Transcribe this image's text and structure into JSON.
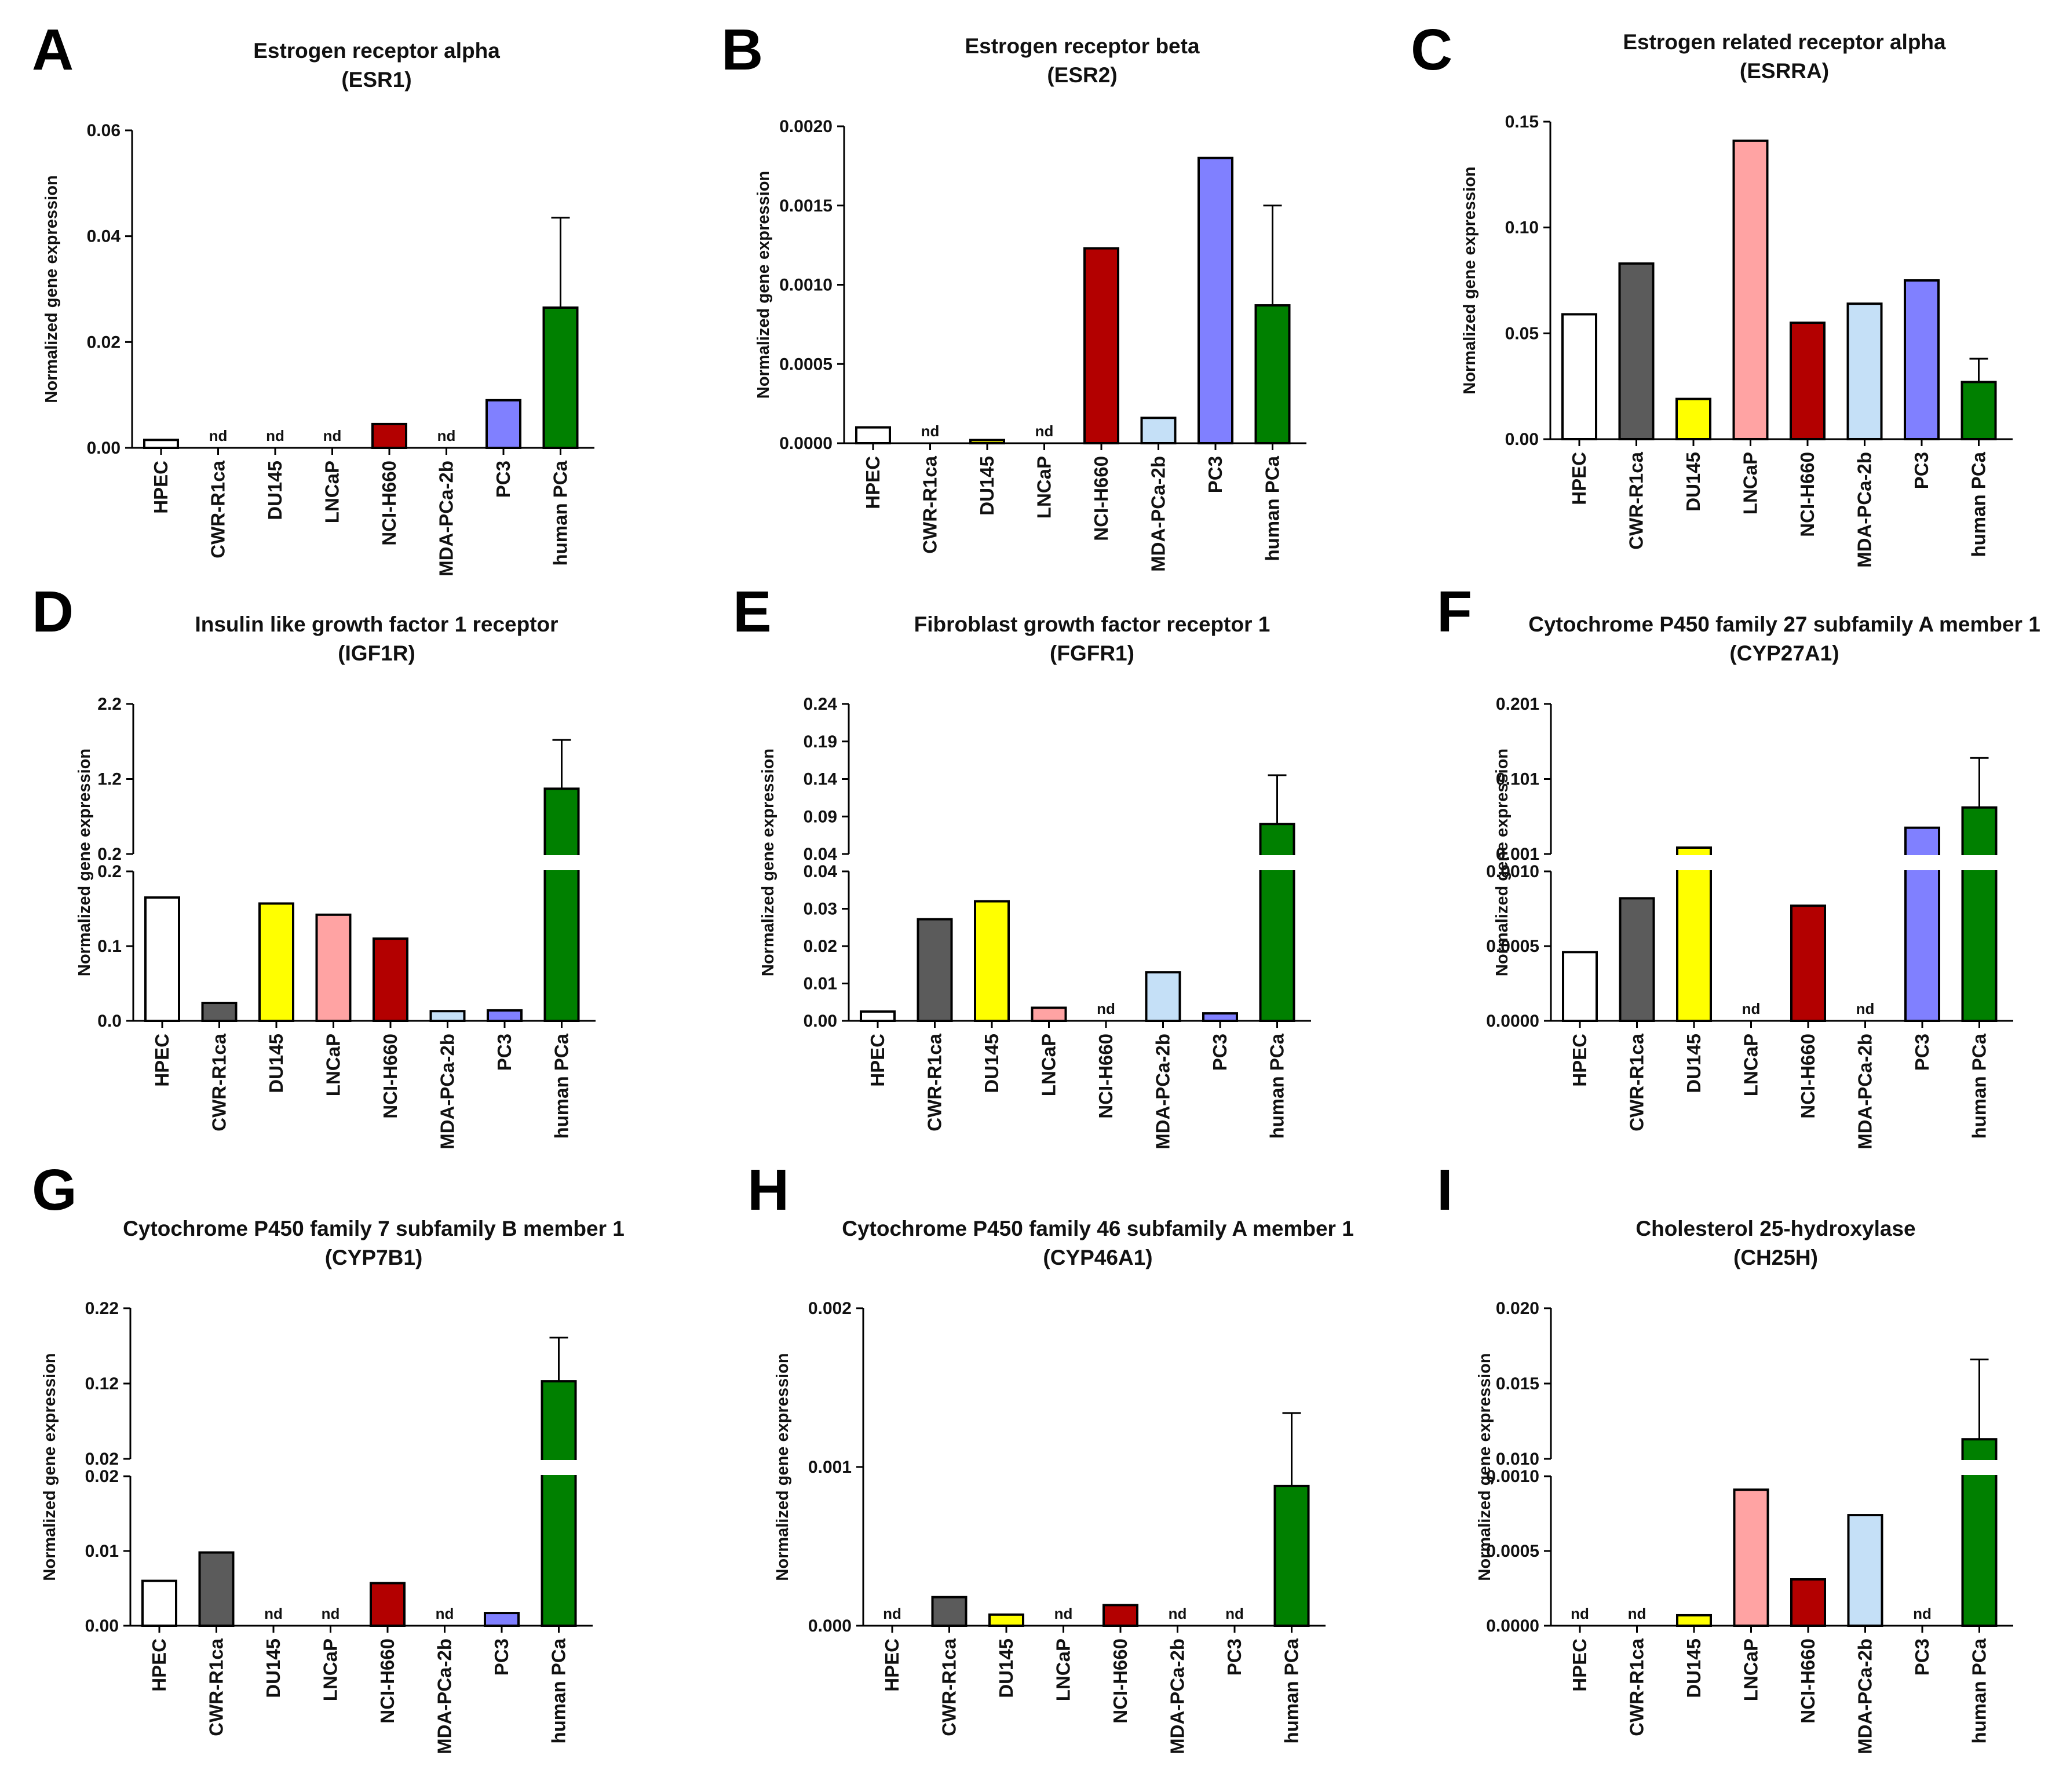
{
  "categories": [
    "HPEC",
    "CWR-R1ca",
    "DU145",
    "LNCaP",
    "NCI-H660",
    "MDA-PCa-2b",
    "PC3",
    "human PCa"
  ],
  "colors": [
    "#ffffff",
    "#5b5b5b",
    "#ffff00",
    "#ffa3a3",
    "#b30000",
    "#c5e0f7",
    "#8080ff",
    "#008000"
  ],
  "nd_label": "nd",
  "chart_data": [
    {
      "type": "bar",
      "panel": "A",
      "title": [
        "Estrogen receptor alpha",
        "(ESR1)"
      ],
      "ylabel": "Normalized gene expression",
      "ylim": [
        0,
        0.06
      ],
      "ticks": [
        "0.00",
        "0.02",
        "0.04",
        "0.06"
      ],
      "values": [
        0.0015,
        null,
        null,
        null,
        0.0045,
        null,
        0.009,
        0.0265
      ],
      "errors": [
        null,
        null,
        null,
        null,
        null,
        null,
        null,
        0.017
      ]
    },
    {
      "type": "bar",
      "panel": "B",
      "title": [
        "Estrogen receptor beta",
        "(ESR2)"
      ],
      "ylabel": "Normalized gene expression",
      "ylim": [
        0,
        0.002
      ],
      "ticks": [
        "0.0000",
        "0.0005",
        "0.0010",
        "0.0015",
        "0.0020"
      ],
      "values": [
        0.0001,
        null,
        2e-05,
        null,
        0.00123,
        0.00016,
        0.0018,
        0.00087
      ],
      "errors": [
        null,
        null,
        null,
        null,
        null,
        null,
        null,
        0.00063
      ]
    },
    {
      "type": "bar",
      "panel": "C",
      "title": [
        "Estrogen related receptor alpha",
        "(ESRRA)"
      ],
      "ylabel": "Normalized gene expression",
      "ylim": [
        0,
        0.15
      ],
      "ticks": [
        "0.00",
        "0.05",
        "0.10",
        "0.15"
      ],
      "values": [
        0.059,
        0.083,
        0.019,
        0.141,
        0.055,
        0.064,
        0.075,
        0.027
      ],
      "errors": [
        null,
        null,
        null,
        null,
        null,
        null,
        null,
        0.011
      ]
    },
    {
      "type": "bar",
      "panel": "D",
      "broken_axis": true,
      "title": [
        "Insulin like growth factor 1 receptor",
        "(IGF1R)"
      ],
      "ylabel": "Normalized gene expression",
      "lower_range": [
        0,
        0.2
      ],
      "upper_range": [
        0.2,
        2.2
      ],
      "lower_ticks": [
        "0.0",
        "0.1",
        "0.2"
      ],
      "upper_ticks": [
        "0.2",
        "1.2",
        "2.2"
      ],
      "values": [
        0.165,
        0.024,
        0.157,
        0.142,
        0.11,
        0.013,
        0.014,
        1.07
      ],
      "errors": [
        null,
        null,
        null,
        null,
        null,
        null,
        null,
        0.65
      ]
    },
    {
      "type": "bar",
      "panel": "E",
      "broken_axis": true,
      "title": [
        "Fibroblast growth factor receptor 1",
        "(FGFR1)"
      ],
      "ylabel": "Normalized gene expression",
      "lower_range": [
        0,
        0.04
      ],
      "upper_range": [
        0.04,
        0.24
      ],
      "lower_ticks": [
        "0.00",
        "0.01",
        "0.02",
        "0.03",
        "0.04"
      ],
      "upper_ticks": [
        "0.04",
        "0.09",
        "0.14",
        "0.19",
        "0.24"
      ],
      "values": [
        0.0025,
        0.0272,
        0.032,
        0.0035,
        null,
        0.013,
        0.002,
        0.08
      ],
      "errors": [
        null,
        null,
        null,
        null,
        null,
        null,
        null,
        0.065
      ]
    },
    {
      "type": "bar",
      "panel": "F",
      "broken_axis": true,
      "title": [
        "Cytochrome P450 family 27 subfamily A member 1",
        "(CYP27A1)"
      ],
      "ylabel": "Normalized gene expression",
      "lower_range": [
        0,
        0.001
      ],
      "upper_range": [
        0.001,
        0.201
      ],
      "lower_ticks": [
        "0.0000",
        "0.0005",
        "0.0010"
      ],
      "upper_ticks": [
        "0.001",
        "0.101",
        "0.201"
      ],
      "values": [
        0.00046,
        0.00082,
        0.0095,
        null,
        0.00077,
        null,
        0.036,
        0.063
      ],
      "errors": [
        null,
        null,
        null,
        null,
        null,
        null,
        null,
        0.066
      ]
    },
    {
      "type": "bar",
      "panel": "G",
      "broken_axis": true,
      "title": [
        "Cytochrome P450 family 7 subfamily B member 1",
        "(CYP7B1)"
      ],
      "ylabel": "Normalized gene expression",
      "lower_range": [
        0,
        0.02
      ],
      "upper_range": [
        0.02,
        0.22
      ],
      "lower_ticks": [
        "0.00",
        "0.01",
        "0.02"
      ],
      "upper_ticks": [
        "0.02",
        "0.12",
        "0.22"
      ],
      "values": [
        0.006,
        0.0098,
        null,
        null,
        0.0057,
        null,
        0.0017,
        0.123
      ],
      "errors": [
        null,
        null,
        null,
        null,
        null,
        null,
        null,
        0.058
      ]
    },
    {
      "type": "bar",
      "panel": "H",
      "title": [
        "Cytochrome P450 family 46 subfamily A member 1",
        "(CYP46A1)"
      ],
      "ylabel": "Normalized gene expression",
      "ylim": [
        0,
        0.002
      ],
      "ticks": [
        "0.000",
        "0.001",
        "0.002"
      ],
      "values": [
        null,
        0.00018,
        7e-05,
        null,
        0.00013,
        null,
        null,
        0.00088
      ],
      "errors": [
        null,
        null,
        null,
        null,
        null,
        null,
        null,
        0.00046
      ]
    },
    {
      "type": "bar",
      "panel": "I",
      "broken_axis": true,
      "title": [
        "Cholesterol 25-hydroxylase",
        "(CH25H)"
      ],
      "ylabel": "Normalized gene expression",
      "lower_range": [
        0,
        0.001
      ],
      "upper_range": [
        0.01,
        0.02
      ],
      "lower_ticks": [
        "0.0000",
        "0.0005",
        "0.0010"
      ],
      "upper_ticks": [
        "0.010",
        "0.015",
        "0.020"
      ],
      "values": [
        null,
        null,
        7e-05,
        0.00091,
        0.00031,
        0.00074,
        null,
        0.0113
      ],
      "errors": [
        null,
        null,
        null,
        null,
        null,
        null,
        null,
        0.0053
      ]
    }
  ]
}
